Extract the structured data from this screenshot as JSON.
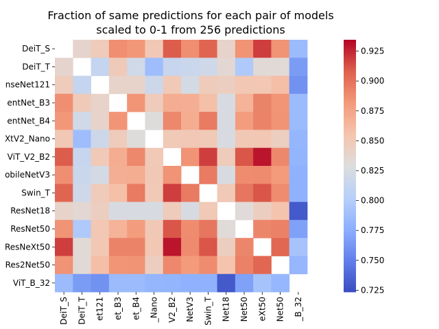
{
  "chart_data": {
    "type": "heatmap",
    "title_lines": [
      "Fraction of same predictions for each pair of models",
      "scaled to 0-1 from 256 predictions"
    ],
    "xlabel": "",
    "ylabel": "",
    "row_labels": [
      "DeiT_S",
      "DeiT_T",
      "nseNet121",
      "entNet_B3",
      "entNet_B4",
      "XtV2_Nano",
      "ViT_V2_B2",
      "obileNetV3",
      "Swin_T",
      "ResNet18",
      "ResNet50",
      "ResNeXt50",
      "Res2Net50",
      "ViT_B_32"
    ],
    "col_labels": [
      "DeiT_S",
      "DeiT_T",
      "et121",
      "et_B3",
      "et_B4",
      "_Nano",
      "V2_B2",
      "NetV3",
      "Swin_T",
      "Net18",
      "Net50",
      "eXt50",
      "Net50",
      "_B_32"
    ],
    "values": [
      [
        null,
        0.838,
        0.848,
        0.887,
        0.883,
        0.851,
        0.909,
        0.887,
        0.906,
        0.84,
        0.885,
        0.918,
        0.885,
        0.785
      ],
      [
        0.838,
        null,
        0.812,
        0.849,
        0.82,
        0.787,
        0.813,
        0.815,
        0.818,
        0.835,
        0.797,
        0.833,
        0.833,
        0.765
      ],
      [
        0.848,
        0.812,
        null,
        0.84,
        0.84,
        0.817,
        0.85,
        0.822,
        0.848,
        0.845,
        0.852,
        0.852,
        0.859,
        0.76
      ],
      [
        0.887,
        0.849,
        0.84,
        null,
        0.884,
        0.848,
        0.87,
        0.869,
        0.858,
        0.825,
        0.866,
        0.892,
        0.884,
        0.785
      ],
      [
        0.883,
        0.82,
        0.84,
        0.884,
        null,
        0.83,
        0.89,
        0.87,
        0.896,
        0.825,
        0.88,
        0.892,
        0.885,
        0.785
      ],
      [
        0.851,
        0.787,
        0.817,
        0.848,
        0.83,
        null,
        0.85,
        0.851,
        0.85,
        0.825,
        0.851,
        0.852,
        0.845,
        0.781
      ],
      [
        0.909,
        0.813,
        0.85,
        0.87,
        0.89,
        0.85,
        null,
        0.885,
        0.918,
        0.848,
        0.911,
        0.93,
        0.89,
        0.78
      ],
      [
        0.887,
        0.815,
        0.822,
        0.869,
        0.87,
        0.851,
        0.885,
        null,
        0.896,
        0.825,
        0.888,
        0.889,
        0.881,
        0.778
      ],
      [
        0.906,
        0.818,
        0.848,
        0.858,
        0.896,
        0.85,
        0.918,
        0.896,
        null,
        0.85,
        0.898,
        0.911,
        0.888,
        0.778
      ],
      [
        0.84,
        0.835,
        0.845,
        0.825,
        0.825,
        0.825,
        0.848,
        0.825,
        0.85,
        null,
        0.832,
        0.845,
        0.855,
        0.73
      ],
      [
        0.885,
        0.797,
        0.852,
        0.866,
        0.88,
        0.851,
        0.911,
        0.888,
        0.898,
        0.832,
        null,
        0.891,
        0.893,
        0.768
      ],
      [
        0.918,
        0.833,
        0.852,
        0.892,
        0.892,
        0.852,
        0.93,
        0.889,
        0.911,
        0.845,
        0.891,
        null,
        0.905,
        0.792
      ],
      [
        0.885,
        0.833,
        0.859,
        0.884,
        0.885,
        0.845,
        0.89,
        0.881,
        0.888,
        0.855,
        0.893,
        0.905,
        null,
        0.782
      ],
      [
        0.785,
        0.765,
        0.76,
        0.785,
        0.785,
        0.781,
        0.78,
        0.778,
        0.778,
        0.73,
        0.768,
        0.792,
        0.782,
        null
      ]
    ],
    "colormap": "coolwarm",
    "vmin": 0.7235,
    "vmax": 0.9345,
    "colorbar_ticks": [
      0.725,
      0.75,
      0.775,
      0.8,
      0.825,
      0.85,
      0.875,
      0.9,
      0.925
    ],
    "colorbar_tick_labels": [
      "0.725",
      "0.750",
      "0.775",
      "0.800",
      "0.825",
      "0.850",
      "0.875",
      "0.900",
      "0.925"
    ],
    "grid": false,
    "legend": "colorbar-right"
  }
}
